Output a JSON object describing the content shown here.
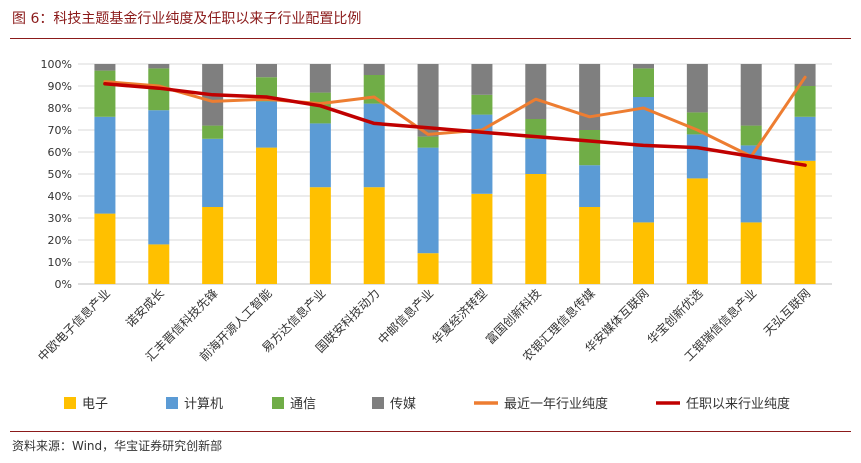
{
  "title": "图 6：科技主题基金行业纯度及任职以来子行业配置比例",
  "source": "资料来源：Wind，华宝证券研究创新部",
  "chart_data": {
    "type": "bar",
    "stacked": true,
    "categories": [
      "中欧电子信息产业",
      "诺安成长",
      "汇丰晋信科技先锋",
      "前海开源人工智能",
      "易方达信息产业",
      "国联安科技动力",
      "中邮信息产业",
      "华夏经济转型",
      "富国创新科技",
      "农银汇理信息传媒",
      "华安媒体互联网",
      "华宝创新优选",
      "工银瑞信信息产业",
      "天弘互联网"
    ],
    "y_ticks": [
      "0%",
      "10%",
      "20%",
      "30%",
      "40%",
      "50%",
      "60%",
      "70%",
      "80%",
      "90%",
      "100%"
    ],
    "ylim": [
      0,
      100
    ],
    "series": [
      {
        "name": "电子",
        "type": "bar",
        "color": "#FFC000",
        "values": [
          32,
          18,
          35,
          62,
          44,
          44,
          14,
          41,
          50,
          35,
          28,
          48,
          28,
          56
        ]
      },
      {
        "name": "计算机",
        "type": "bar",
        "color": "#5B9BD5",
        "values": [
          44,
          61,
          31,
          21,
          29,
          38,
          48,
          36,
          16,
          19,
          57,
          20,
          35,
          20
        ]
      },
      {
        "name": "通信",
        "type": "bar",
        "color": "#70AD47",
        "values": [
          21,
          19,
          6,
          11,
          14,
          13,
          5,
          9,
          9,
          16,
          13,
          10,
          9,
          14
        ]
      },
      {
        "name": "传媒",
        "type": "bar",
        "color": "#7F7F7F",
        "values": [
          3,
          2,
          28,
          6,
          13,
          5,
          33,
          14,
          25,
          30,
          2,
          22,
          28,
          10
        ]
      },
      {
        "name": "最近一年行业纯度",
        "type": "line",
        "color": "#ED7D31",
        "values": [
          92,
          90,
          83,
          84,
          82,
          85,
          68,
          70,
          84,
          76,
          80,
          70,
          58,
          94
        ]
      },
      {
        "name": "任职以来行业纯度",
        "type": "line",
        "color": "#C00000",
        "values": [
          91,
          89,
          86,
          85,
          81,
          73,
          71,
          69,
          67,
          65,
          63,
          62,
          58,
          54
        ]
      }
    ]
  }
}
